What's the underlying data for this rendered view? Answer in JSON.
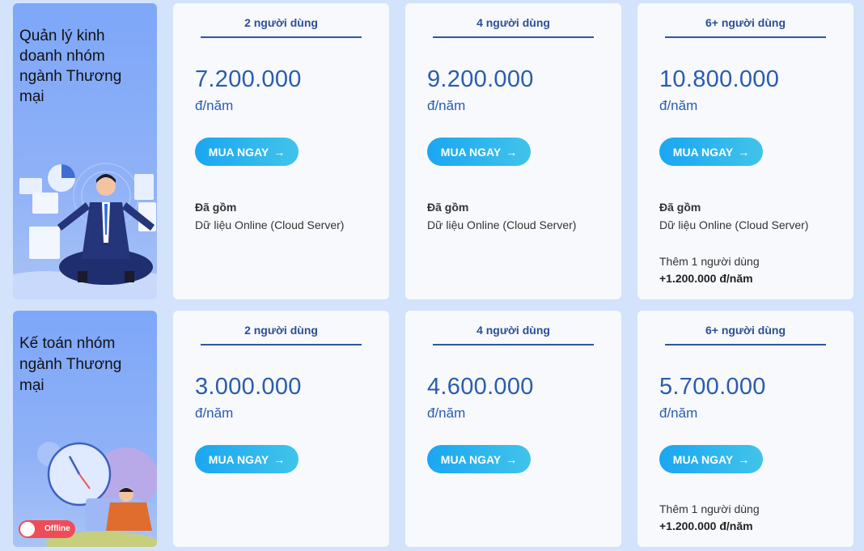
{
  "plans": [
    {
      "category": "Quản lý kinh doanh nhóm ngành Thương mại",
      "tiers": [
        {
          "users": "2 người dùng",
          "price": "7.200.000",
          "unit": "đ/năm",
          "button": "MUA NGAY",
          "included_title": "Đã gồm",
          "included_item": "Dữ liệu Online (Cloud Server)"
        },
        {
          "users": "4 người dùng",
          "price": "9.200.000",
          "unit": "đ/năm",
          "button": "MUA NGAY",
          "included_title": "Đã gồm",
          "included_item": "Dữ liệu Online (Cloud Server)"
        },
        {
          "users": "6+ người dùng",
          "price": "10.800.000",
          "unit": "đ/năm",
          "button": "MUA NGAY",
          "included_title": "Đã gồm",
          "included_item": "Dữ liệu Online (Cloud Server)",
          "extra_label": "Thêm 1 người dùng",
          "extra_price": "+1.200.000 đ/năm"
        }
      ]
    },
    {
      "category": "Kế toán nhóm ngành Thương mại",
      "toggle_label": "Offline",
      "tiers": [
        {
          "users": "2 người dùng",
          "price": "3.000.000",
          "unit": "đ/năm",
          "button": "MUA NGAY"
        },
        {
          "users": "4 người dùng",
          "price": "4.600.000",
          "unit": "đ/năm",
          "button": "MUA NGAY"
        },
        {
          "users": "6+ người dùng",
          "price": "5.700.000",
          "unit": "đ/năm",
          "button": "MUA NGAY",
          "extra_label": "Thêm 1 người dùng",
          "extra_price": "+1.200.000 đ/năm"
        }
      ]
    }
  ],
  "icons": {
    "button_arrow": "arrow-right-icon",
    "illustration_1": "meditating-businessman-illustration",
    "illustration_2": "clock-and-person-illustration"
  },
  "colors": {
    "accent": "#2a5cae",
    "button_start": "#1aa6f2",
    "button_end": "#41c4ea",
    "toggle": "#ee4d57"
  }
}
